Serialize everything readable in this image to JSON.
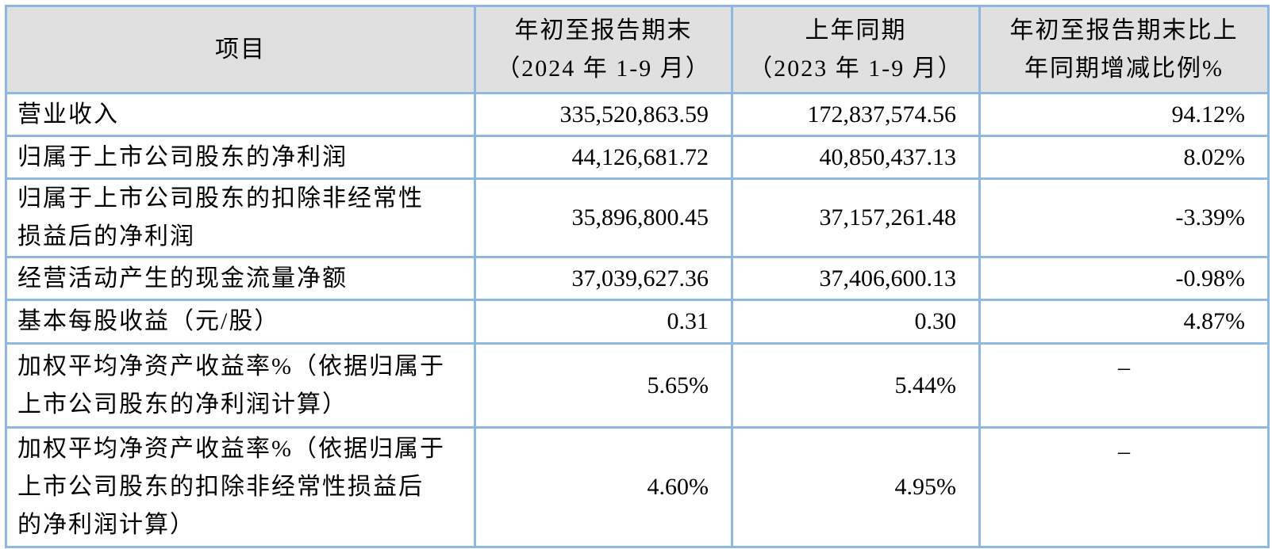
{
  "table": {
    "colors": {
      "border": "#8FB7E2",
      "header_background": "#E0E0E0",
      "text": "#000000"
    },
    "columns": [
      "项目",
      "年初至报告期末\n（2024 年 1-9 月）",
      "上年同期\n（2023 年 1-9 月）",
      "年初至报告期末比上\n年同期增减比例%"
    ],
    "rows": [
      {
        "item": "营业收入",
        "current": "335,520,863.59",
        "prior": "172,837,574.56",
        "change": "94.12%"
      },
      {
        "item": "归属于上市公司股东的净利润",
        "current": "44,126,681.72",
        "prior": "40,850,437.13",
        "change": "8.02%"
      },
      {
        "item": "归属于上市公司股东的扣除非经常性\n损益后的净利润",
        "current": "35,896,800.45",
        "prior": "37,157,261.48",
        "change": "-3.39%"
      },
      {
        "item": "经营活动产生的现金流量净额",
        "current": "37,039,627.36",
        "prior": "37,406,600.13",
        "change": "-0.98%"
      },
      {
        "item": "基本每股收益（元/股）",
        "current": "0.31",
        "prior": "0.30",
        "change": "4.87%"
      },
      {
        "item": "加权平均净资产收益率%（依据归属于\n上市公司股东的净利润计算）",
        "current": "5.65%",
        "prior": "5.44%",
        "change": "–"
      },
      {
        "item": "加权平均净资产收益率%（依据归属于\n上市公司股东的扣除非经常性损益后\n的净利润计算）",
        "current": "4.60%",
        "prior": "4.95%",
        "change": "–"
      }
    ]
  }
}
